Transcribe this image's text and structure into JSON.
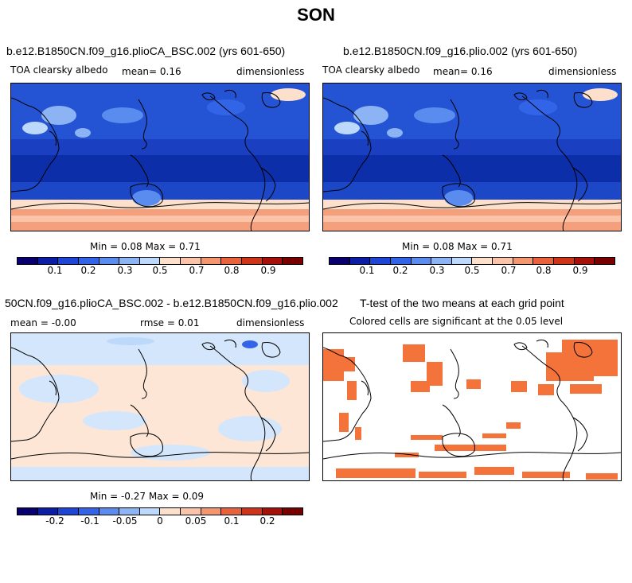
{
  "figure_title": "SON",
  "colors": {
    "scale_ctrl": [
      "#08006e",
      "#0c1ea6",
      "#1e46d6",
      "#3264e8",
      "#5a8cf0",
      "#8cb4f5",
      "#bcd8fb",
      "#fde0cc",
      "#fbc3a8",
      "#f4966e",
      "#e8623c",
      "#d03418",
      "#a51008",
      "#780000"
    ],
    "scale_diff": [
      "#08006e",
      "#0c1ea6",
      "#1e46d6",
      "#3264e8",
      "#5a8cf0",
      "#8cb4f5",
      "#bcd8fb",
      "#fde0cc",
      "#fbc3a8",
      "#f4966e",
      "#e8623c",
      "#d03418",
      "#a51008",
      "#780000"
    ],
    "significant": "#f4733a"
  },
  "panel1": {
    "title": "b.e12.B1850CN.f09_g16.plioCA_BSC.002 (yrs 601-650)",
    "variable": "TOA clearsky albedo",
    "mean": "mean=    0.16",
    "units": "dimensionless",
    "stats": "Min =    0.08 Max =    0.71",
    "ticks": [
      "0.1",
      "0.2",
      "0.3",
      "0.5",
      "0.7",
      "0.8",
      "0.9"
    ]
  },
  "panel2": {
    "title": "b.e12.B1850CN.f09_g16.plio.002 (yrs 601-650)",
    "variable": "TOA clearsky albedo",
    "mean": "mean=    0.16",
    "units": "dimensionless",
    "stats": "Min =    0.08 Max =    0.71",
    "ticks": [
      "0.1",
      "0.2",
      "0.3",
      "0.5",
      "0.7",
      "0.8",
      "0.9"
    ]
  },
  "panel3": {
    "title": "50CN.f09_g16.plioCA_BSC.002 - b.e12.B1850CN.f09_g16.plio.002",
    "mean": "mean =   -0.00",
    "rmse": "rmse =    0.01",
    "units": "dimensionless",
    "stats": "Min =   -0.27 Max =    0.09",
    "ticks": [
      "-0.2",
      "-0.1",
      "-0.05",
      "0",
      "0.05",
      "0.1",
      "0.2"
    ]
  },
  "panel4": {
    "title": "T-test of the two means at each grid point",
    "subtitle": "Colored cells are significant at the 0.05 level"
  }
}
